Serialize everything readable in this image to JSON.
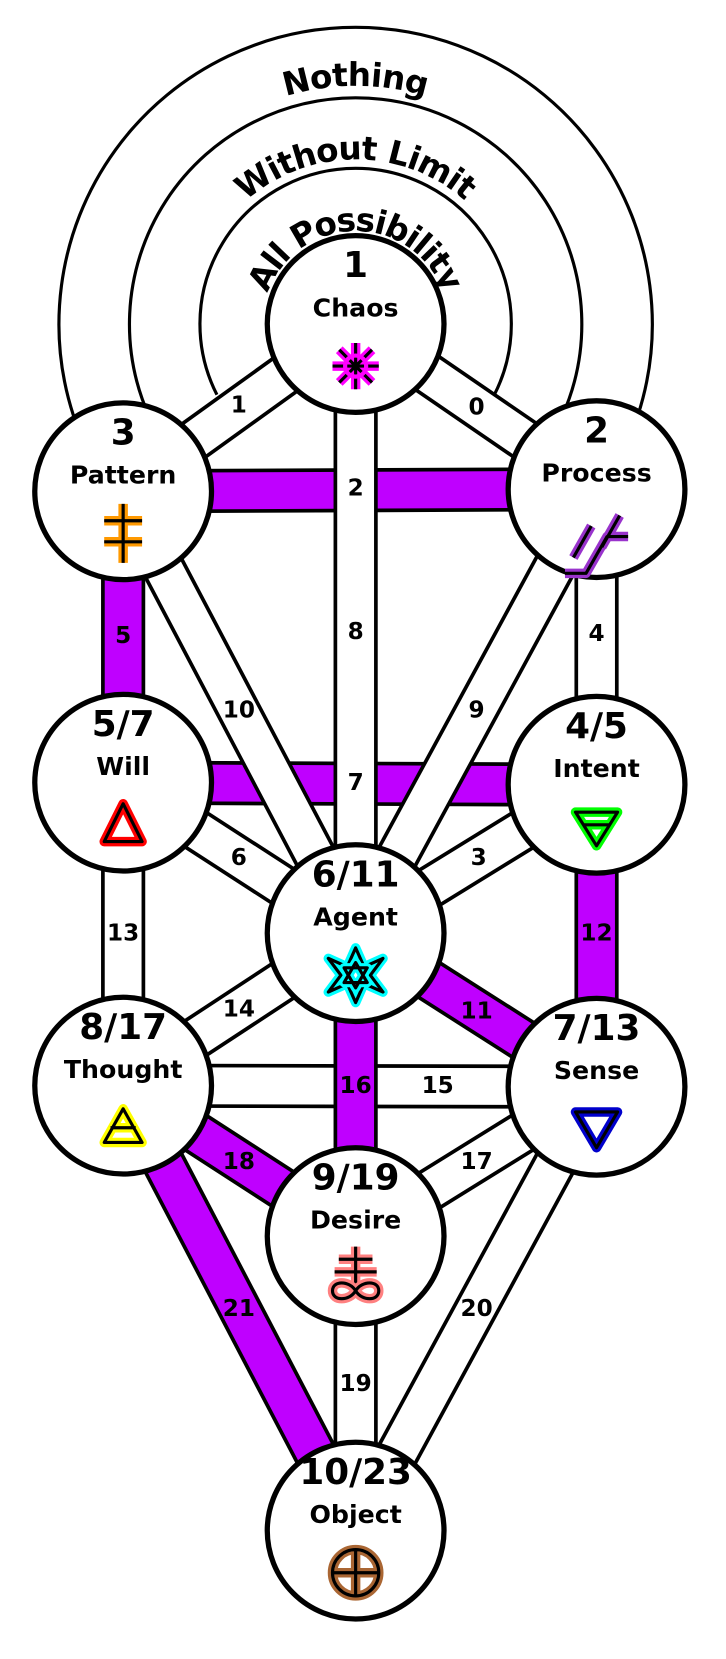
{
  "rings": [
    "Nothing",
    "Without Limit",
    "All Possibility"
  ],
  "nodes": [
    {
      "number": "1",
      "name": "Chaos"
    },
    {
      "number": "2",
      "name": "Process"
    },
    {
      "number": "3",
      "name": "Pattern"
    },
    {
      "number": "5/7",
      "name": "Will"
    },
    {
      "number": "4/5",
      "name": "Intent"
    },
    {
      "number": "6/11",
      "name": "Agent"
    },
    {
      "number": "8/17",
      "name": "Thought"
    },
    {
      "number": "7/13",
      "name": "Sense"
    },
    {
      "number": "9/19",
      "name": "Desire"
    },
    {
      "number": "10/23",
      "name": "Object"
    }
  ],
  "paths": [
    "0",
    "1",
    "2",
    "3",
    "4",
    "5",
    "6",
    "7",
    "8",
    "9",
    "10",
    "11",
    "12",
    "13",
    "14",
    "15",
    "16",
    "17",
    "18",
    "19",
    "20",
    "21"
  ]
}
